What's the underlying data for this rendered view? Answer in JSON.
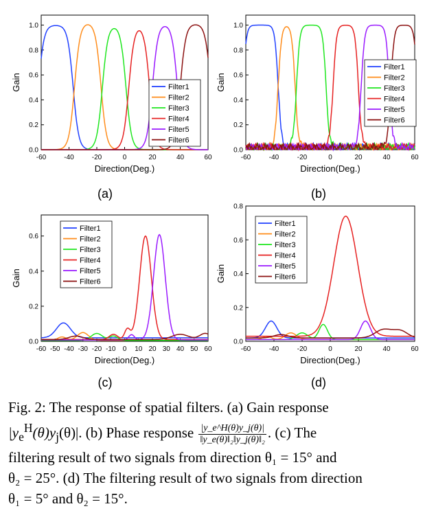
{
  "colors": {
    "Filter1": "#1f3fff",
    "Filter2": "#ff8c1a",
    "Filter3": "#1ee61e",
    "Filter4": "#e62020",
    "Filter5": "#9a1aff",
    "Filter6": "#8b1010"
  },
  "chart_data": [
    {
      "panel": "(a)",
      "type": "line",
      "xlabel": "Direction(Deg.)",
      "ylabel": "Gain",
      "xlim": [
        -60,
        60
      ],
      "ylim": [
        0,
        1.08
      ],
      "xticks": [
        "-60",
        "-40",
        "-20",
        "0",
        "20",
        "40",
        "60"
      ],
      "yticks": [
        "0.0",
        "0.2",
        "0.4",
        "0.6",
        "0.8",
        "1.0"
      ],
      "ytick_values": [
        0,
        0.2,
        0.4,
        0.6,
        0.8,
        1.0
      ],
      "legend": "bottom-right",
      "series": [
        {
          "name": "Filter1",
          "kind": "band",
          "lo": -62,
          "hi": -37,
          "peak": 1.0,
          "width": 2
        },
        {
          "name": "Filter2",
          "kind": "band",
          "lo": -36,
          "hi": -17,
          "peak": 1.02,
          "width": 2
        },
        {
          "name": "Filter3",
          "kind": "band",
          "lo": -16,
          "hi": 1,
          "peak": 1.0,
          "width": 2
        },
        {
          "name": "Filter4",
          "kind": "band",
          "lo": 3,
          "hi": 18,
          "peak": 1.0,
          "width": 2
        },
        {
          "name": "Filter5",
          "kind": "band",
          "lo": 20,
          "hi": 38,
          "peak": 1.01,
          "width": 2
        },
        {
          "name": "Filter6",
          "kind": "band",
          "lo": 40,
          "hi": 62,
          "peak": 1.01,
          "width": 2
        }
      ]
    },
    {
      "panel": "(b)",
      "type": "line",
      "xlabel": "Direction(Deg.)",
      "ylabel": "Gain",
      "xlim": [
        -60,
        60
      ],
      "ylim": [
        0,
        1.08
      ],
      "xticks": [
        "-60",
        "-40",
        "-20",
        "0",
        "20",
        "40",
        "60"
      ],
      "yticks": [
        "0.0",
        "0.2",
        "0.4",
        "0.6",
        "0.8",
        "1.0"
      ],
      "ytick_values": [
        0,
        0.2,
        0.4,
        0.6,
        0.8,
        1.0
      ],
      "legend": "right",
      "series": [
        {
          "name": "Filter1",
          "kind": "band",
          "lo": -62,
          "hi": -37,
          "peak": 1.0,
          "width": 1.2,
          "noise": 0.05
        },
        {
          "name": "Filter2",
          "kind": "band",
          "lo": -37,
          "hi": -25,
          "peak": 1.0,
          "width": 1.2,
          "noise": 0.05
        },
        {
          "name": "Filter3",
          "kind": "band",
          "lo": -24,
          "hi": -3,
          "peak": 1.0,
          "width": 1.2,
          "noise": 0.05
        },
        {
          "name": "Filter4",
          "kind": "band",
          "lo": 2,
          "hi": 20,
          "peak": 1.0,
          "width": 1.2,
          "noise": 0.05
        },
        {
          "name": "Filter5",
          "kind": "band",
          "lo": 22,
          "hi": 42,
          "peak": 1.0,
          "width": 1.2,
          "noise": 0.05
        },
        {
          "name": "Filter6",
          "kind": "band",
          "lo": 43,
          "hi": 62,
          "peak": 1.0,
          "width": 1.2,
          "noise": 0.05
        }
      ]
    },
    {
      "panel": "(c)",
      "type": "line",
      "xlabel": "Direction(Deg.)",
      "ylabel": "Gain",
      "xlim": [
        -60,
        60
      ],
      "ylim": [
        0,
        0.72
      ],
      "xticks": [
        "-60",
        "-50",
        "-40",
        "-30",
        "-20",
        "-10",
        "0",
        "10",
        "20",
        "30",
        "40",
        "50",
        "60"
      ],
      "yticks": [
        "0.0",
        "0.2",
        "0.4",
        "0.6"
      ],
      "ytick_values": [
        0,
        0.2,
        0.4,
        0.6
      ],
      "legend": "top-left",
      "series": [
        {
          "name": "Filter1",
          "kind": "bumps",
          "base": 0.02,
          "bumps": [
            [
              -44,
              0.085,
              5
            ]
          ]
        },
        {
          "name": "Filter2",
          "kind": "bumps",
          "base": 0.005,
          "bumps": [
            [
              -30,
              0.045,
              4
            ],
            [
              -45,
              0.02,
              3
            ]
          ]
        },
        {
          "name": "Filter3",
          "kind": "bumps",
          "base": 0.005,
          "bumps": [
            [
              -20,
              0.04,
              4
            ],
            [
              -8,
              0.025,
              3
            ]
          ]
        },
        {
          "name": "Filter4",
          "kind": "bumps",
          "base": 0.01,
          "bumps": [
            [
              15,
              0.59,
              4.2
            ],
            [
              2,
              0.06,
              2
            ],
            [
              -8,
              0.03,
              3
            ]
          ]
        },
        {
          "name": "Filter5",
          "kind": "bumps",
          "base": 0.008,
          "bumps": [
            [
              25,
              0.6,
              4.2
            ],
            [
              5,
              0.03,
              2
            ]
          ]
        },
        {
          "name": "Filter6",
          "kind": "bumps",
          "base": 0.01,
          "bumps": [
            [
              -35,
              0.02,
              5
            ],
            [
              40,
              0.03,
              6
            ],
            [
              58,
              0.035,
              4
            ]
          ]
        }
      ]
    },
    {
      "panel": "(d)",
      "type": "line",
      "xlabel": "Direction(Deg.)",
      "ylabel": "Gain",
      "xlim": [
        -60,
        60
      ],
      "ylim": [
        0,
        0.8
      ],
      "xticks": [
        "-60",
        "-40",
        "-20",
        "0",
        "20",
        "40",
        "60"
      ],
      "yticks": [
        "0.0",
        "0.2",
        "0.4",
        "0.6",
        "0.8"
      ],
      "ytick_values": [
        0,
        0.2,
        0.4,
        0.6,
        0.8
      ],
      "legend": "top-left",
      "series": [
        {
          "name": "Filter1",
          "kind": "bumps",
          "base": 0.02,
          "bumps": [
            [
              -42,
              0.1,
              4
            ]
          ]
        },
        {
          "name": "Filter2",
          "kind": "bumps",
          "base": 0.01,
          "bumps": [
            [
              -28,
              0.04,
              4
            ],
            [
              -45,
              0.02,
              3
            ]
          ]
        },
        {
          "name": "Filter3",
          "kind": "bumps",
          "base": 0.01,
          "bumps": [
            [
              -5,
              0.09,
              3
            ],
            [
              -20,
              0.04,
              4
            ]
          ]
        },
        {
          "name": "Filter4",
          "kind": "bumps",
          "base": 0.03,
          "bumps": [
            [
              11,
              0.71,
              8.5
            ]
          ]
        },
        {
          "name": "Filter5",
          "kind": "bumps",
          "base": 0.01,
          "bumps": [
            [
              25,
              0.11,
              3.5
            ]
          ]
        },
        {
          "name": "Filter6",
          "kind": "bumps",
          "base": 0.02,
          "bumps": [
            [
              -35,
              0.02,
              5
            ],
            [
              38,
              0.05,
              6
            ],
            [
              50,
              0.04,
              5
            ]
          ]
        }
      ]
    }
  ],
  "subfig_labels": [
    "(a)",
    "(b)",
    "(c)",
    "(d)"
  ],
  "caption": {
    "p1": "Fig. 2: The response of spatial filters. (a) Gain response",
    "p2a": "|y",
    "p2b": "(θ)y",
    "p2c": "(θ)|. (b) Phase response",
    "frac_num": "|y_e^H(θ)y_j(θ)|",
    "frac_den": "‖y_e(θ)‖₂‖y_j(θ)‖₂",
    "p2d": ". (c) The",
    "p3": "filtering result of two signals from direction θ₁ = 15° and",
    "p4": "θ₂ = 25°. (d) The filtering result of two signals from direction",
    "p5": "θ₁ = 5° and θ₂ = 15°."
  }
}
